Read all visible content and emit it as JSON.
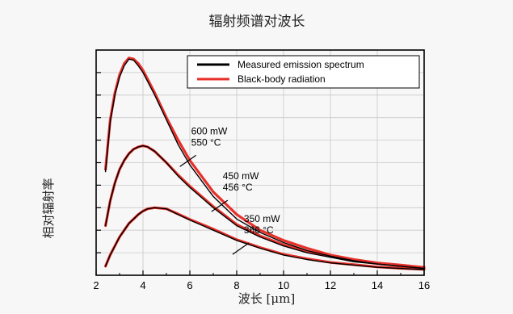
{
  "chart_data": {
    "type": "line",
    "title": "辐射频谱对波长",
    "xlabel": "波长 [μm]",
    "ylabel": "相对辐射率",
    "xlim": [
      2,
      16
    ],
    "ylim": [
      0,
      1
    ],
    "x_ticks": [
      2,
      4,
      6,
      8,
      10,
      12,
      14,
      16
    ],
    "x_tick_labels": [
      "2",
      "4",
      "6",
      "8",
      "10",
      "12",
      "14",
      "16"
    ],
    "y_tick_labels_shown": false,
    "grid": true,
    "legend": {
      "placement": "top-right",
      "entries": [
        {
          "label": "Measured emission spectrum",
          "color": "#000000"
        },
        {
          "label": "Black-body radiation",
          "color": "#e8302a"
        }
      ]
    },
    "series": [
      {
        "name": "Measured emission spectrum",
        "color": "#000000",
        "curves": [
          {
            "x": [
              2.4,
              2.6,
              2.8,
              3.0,
              3.2,
              3.4,
              3.6,
              3.8,
              4.0,
              4.5,
              5.0,
              5.5,
              6.0,
              7.0,
              8.0,
              9.0,
              10.0,
              11.0,
              12.0,
              13.0,
              14.0,
              15.0,
              16.0
            ],
            "y": [
              0.46,
              0.68,
              0.8,
              0.88,
              0.93,
              0.96,
              0.955,
              0.93,
              0.9,
              0.8,
              0.69,
              0.58,
              0.49,
              0.35,
              0.25,
              0.19,
              0.145,
              0.11,
              0.085,
              0.065,
              0.05,
              0.04,
              0.03
            ]
          },
          {
            "x": [
              2.4,
              2.6,
              2.8,
              3.0,
              3.2,
              3.4,
              3.6,
              3.8,
              4.0,
              4.2,
              4.5,
              5.0,
              5.5,
              6.0,
              7.0,
              8.0,
              9.0,
              10.0,
              11.0,
              12.0,
              13.0,
              14.0,
              15.0,
              16.0
            ],
            "y": [
              0.22,
              0.33,
              0.41,
              0.47,
              0.51,
              0.54,
              0.56,
              0.57,
              0.575,
              0.57,
              0.55,
              0.5,
              0.44,
              0.39,
              0.3,
              0.22,
              0.17,
              0.13,
              0.1,
              0.08,
              0.06,
              0.05,
              0.04,
              0.03
            ]
          },
          {
            "x": [
              2.4,
              2.6,
              2.8,
              3.0,
              3.2,
              3.4,
              3.6,
              3.8,
              4.0,
              4.2,
              4.5,
              5.0,
              5.5,
              6.0,
              7.0,
              8.0,
              9.0,
              10.0,
              11.0,
              12.0,
              13.0,
              14.0,
              15.0,
              16.0
            ],
            "y": [
              0.04,
              0.09,
              0.13,
              0.17,
              0.2,
              0.23,
              0.25,
              0.27,
              0.285,
              0.295,
              0.3,
              0.295,
              0.27,
              0.245,
              0.2,
              0.155,
              0.12,
              0.09,
              0.07,
              0.055,
              0.045,
              0.035,
              0.03,
              0.025
            ]
          }
        ]
      },
      {
        "name": "Black-body radiation",
        "color": "#e8302a",
        "curves": [
          {
            "x": [
              2.4,
              2.6,
              2.8,
              3.0,
              3.2,
              3.4,
              3.6,
              3.8,
              4.0,
              4.5,
              5.0,
              5.5,
              6.0,
              7.0,
              8.0,
              9.0,
              10.0,
              11.0,
              12.0,
              13.0,
              14.0,
              15.0,
              16.0
            ],
            "y": [
              0.47,
              0.69,
              0.81,
              0.89,
              0.94,
              0.965,
              0.96,
              0.94,
              0.91,
              0.81,
              0.7,
              0.6,
              0.51,
              0.37,
              0.27,
              0.2,
              0.155,
              0.12,
              0.09,
              0.07,
              0.055,
              0.045,
              0.035
            ]
          },
          {
            "x": [
              2.4,
              2.6,
              2.8,
              3.0,
              3.2,
              3.4,
              3.6,
              3.8,
              4.0,
              4.2,
              4.5,
              5.0,
              5.5,
              6.0,
              7.0,
              8.0,
              9.0,
              10.0,
              11.0,
              12.0,
              13.0,
              14.0,
              15.0,
              16.0
            ],
            "y": [
              0.22,
              0.33,
              0.41,
              0.47,
              0.51,
              0.54,
              0.56,
              0.57,
              0.575,
              0.57,
              0.55,
              0.5,
              0.445,
              0.395,
              0.305,
              0.225,
              0.175,
              0.135,
              0.105,
              0.085,
              0.065,
              0.052,
              0.042,
              0.032
            ]
          },
          {
            "x": [
              2.4,
              2.6,
              2.8,
              3.0,
              3.2,
              3.4,
              3.6,
              3.8,
              4.0,
              4.2,
              4.5,
              5.0,
              5.5,
              6.0,
              7.0,
              8.0,
              9.0,
              10.0,
              11.0,
              12.0,
              13.0,
              14.0,
              15.0,
              16.0
            ],
            "y": [
              0.04,
              0.09,
              0.13,
              0.17,
              0.2,
              0.23,
              0.25,
              0.27,
              0.285,
              0.295,
              0.3,
              0.295,
              0.272,
              0.248,
              0.205,
              0.158,
              0.123,
              0.093,
              0.073,
              0.057,
              0.047,
              0.037,
              0.031,
              0.026
            ]
          }
        ]
      }
    ],
    "annotations": [
      {
        "lines": [
          "600 mW",
          "550 °C"
        ],
        "x": 5.85,
        "y": 0.54
      },
      {
        "lines": [
          "450 mW",
          "456 °C"
        ],
        "x": 7.2,
        "y": 0.34
      },
      {
        "lines": [
          "350 mW",
          "366 °C"
        ],
        "x": 8.1,
        "y": 0.15
      }
    ]
  }
}
